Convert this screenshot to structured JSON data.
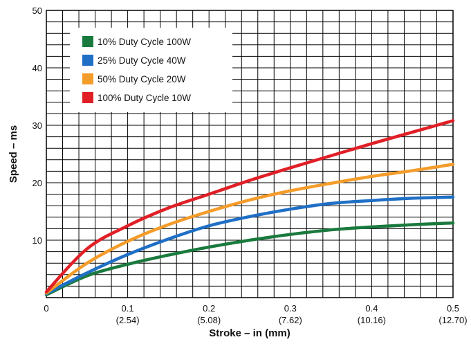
{
  "chart_data": {
    "type": "line",
    "xlabel": "Stroke – in (mm)",
    "ylabel": "Speed – ms",
    "xlim": [
      0,
      0.5
    ],
    "ylim": [
      0,
      50
    ],
    "grid": true,
    "legend_position": "top-left",
    "x_ticks": [
      {
        "value": 0,
        "label": "0",
        "sublabel": ""
      },
      {
        "value": 0.1,
        "label": "0.1",
        "sublabel": "(2.54)"
      },
      {
        "value": 0.2,
        "label": "0.2",
        "sublabel": "(5.08)"
      },
      {
        "value": 0.3,
        "label": "0.3",
        "sublabel": "(7.62)"
      },
      {
        "value": 0.4,
        "label": "0.4",
        "sublabel": "(10.16)"
      },
      {
        "value": 0.5,
        "label": "0.5",
        "sublabel": "(12.70)"
      }
    ],
    "y_ticks": [
      {
        "value": 10,
        "label": "10"
      },
      {
        "value": 20,
        "label": "20"
      },
      {
        "value": 30,
        "label": "30"
      },
      {
        "value": 40,
        "label": "40"
      },
      {
        "value": 50,
        "label": "50"
      }
    ],
    "series": [
      {
        "name": "10% Duty Cycle 100W",
        "color": "#1a7a3e",
        "x": [
          0,
          0.05,
          0.1,
          0.15,
          0.2,
          0.25,
          0.3,
          0.35,
          0.4,
          0.45,
          0.5
        ],
        "y": [
          0.5,
          3.8,
          5.8,
          7.4,
          8.8,
          10.0,
          11.0,
          11.8,
          12.3,
          12.7,
          13.0
        ]
      },
      {
        "name": "25% Duty Cycle 40W",
        "color": "#1f6fc5",
        "x": [
          0,
          0.05,
          0.1,
          0.15,
          0.2,
          0.25,
          0.3,
          0.35,
          0.4,
          0.45,
          0.5
        ],
        "y": [
          0.7,
          4.3,
          7.5,
          10.2,
          12.5,
          14.1,
          15.4,
          16.4,
          16.9,
          17.3,
          17.5
        ]
      },
      {
        "name": "50% Duty Cycle 20W",
        "color": "#f49c2a",
        "x": [
          0,
          0.05,
          0.1,
          0.15,
          0.2,
          0.25,
          0.3,
          0.35,
          0.4,
          0.45,
          0.5
        ],
        "y": [
          0.8,
          6.0,
          9.8,
          12.7,
          15.0,
          17.0,
          18.6,
          19.9,
          21.1,
          22.1,
          23.2
        ]
      },
      {
        "name": "100% Duty Cycle 10W",
        "color": "#e01f26",
        "x": [
          0,
          0.05,
          0.1,
          0.15,
          0.2,
          0.25,
          0.3,
          0.35,
          0.4,
          0.45,
          0.5
        ],
        "y": [
          1.0,
          8.5,
          12.5,
          15.6,
          18.0,
          20.4,
          22.6,
          24.7,
          26.8,
          28.8,
          30.8
        ]
      }
    ]
  }
}
